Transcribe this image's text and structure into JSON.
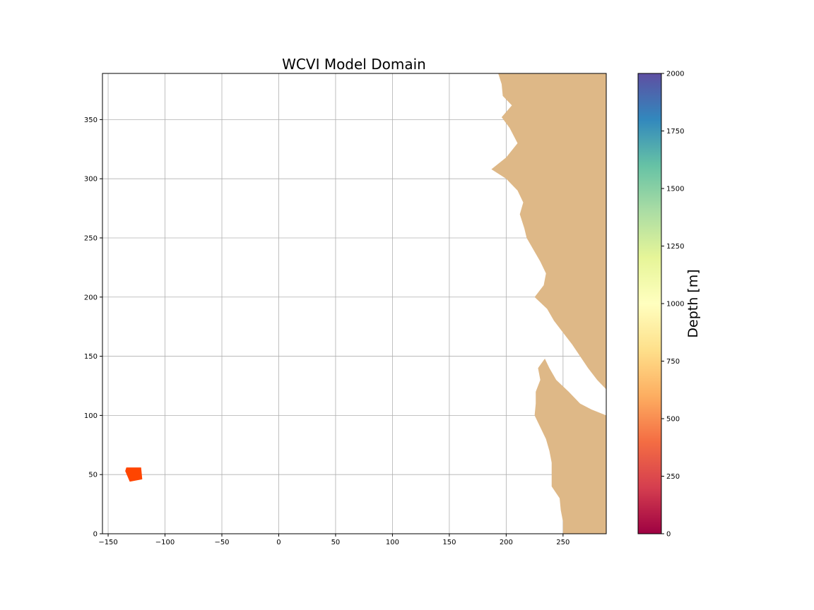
{
  "chart_data": {
    "type": "heatmap",
    "title": "WCVI Model Domain",
    "xlabel": "",
    "ylabel": "",
    "xlim": [
      -155,
      288
    ],
    "ylim": [
      0,
      389
    ],
    "xticks": [
      -150,
      -100,
      -50,
      0,
      50,
      100,
      150,
      200,
      250
    ],
    "xtick_labels": [
      "−150",
      "−100",
      "−50",
      "0",
      "50",
      "100",
      "150",
      "200",
      "250"
    ],
    "yticks": [
      0,
      50,
      100,
      150,
      200,
      250,
      300,
      350
    ],
    "ytick_labels": [
      "0",
      "50",
      "100",
      "150",
      "200",
      "250",
      "300",
      "350"
    ],
    "grid": true,
    "land_color": "#deb887",
    "land_region": {
      "description_free": true,
      "coastline_x_at_y": [
        [
          389,
          193
        ],
        [
          380,
          196
        ],
        [
          370,
          197
        ],
        [
          362,
          205
        ],
        [
          352,
          196
        ],
        [
          343,
          203
        ],
        [
          330,
          210
        ],
        [
          318,
          200
        ],
        [
          308,
          187
        ],
        [
          300,
          200
        ],
        [
          290,
          210
        ],
        [
          280,
          215
        ],
        [
          270,
          212
        ],
        [
          258,
          216
        ],
        [
          250,
          218
        ],
        [
          240,
          224
        ],
        [
          230,
          230
        ],
        [
          220,
          235
        ],
        [
          210,
          233
        ],
        [
          200,
          225
        ],
        [
          190,
          236
        ],
        [
          180,
          242
        ],
        [
          170,
          250
        ],
        [
          160,
          258
        ],
        [
          150,
          265
        ],
        [
          140,
          272
        ],
        [
          130,
          280
        ],
        [
          122,
          288
        ]
      ],
      "southern_coast_x_at_y": [
        [
          148,
          234
        ],
        [
          140,
          228
        ],
        [
          130,
          230
        ],
        [
          120,
          226
        ],
        [
          110,
          226
        ],
        [
          100,
          225
        ],
        [
          90,
          230
        ],
        [
          80,
          235
        ],
        [
          70,
          238
        ],
        [
          60,
          240
        ],
        [
          50,
          240
        ],
        [
          40,
          240
        ],
        [
          30,
          247
        ],
        [
          20,
          248
        ],
        [
          10,
          250
        ],
        [
          0,
          250
        ]
      ],
      "strait_edge_x_at_y": [
        [
          148,
          234
        ],
        [
          140,
          238
        ],
        [
          130,
          244
        ],
        [
          120,
          255
        ],
        [
          110,
          265
        ],
        [
          105,
          275
        ],
        [
          100,
          288
        ]
      ]
    },
    "points": {
      "name": "",
      "x_range": [
        -135,
        -120
      ],
      "y_range": [
        44,
        56
      ],
      "depth_value": 430
    },
    "colorbar": {
      "cmap": "Spectral",
      "label": "Depth [m]",
      "range": [
        0,
        2000
      ],
      "ticks": [
        0,
        250,
        500,
        750,
        1000,
        1250,
        1500,
        1750,
        2000
      ],
      "tick_labels": [
        "0",
        "250",
        "500",
        "750",
        "1000",
        "1250",
        "1500",
        "1750",
        "2000"
      ]
    }
  }
}
